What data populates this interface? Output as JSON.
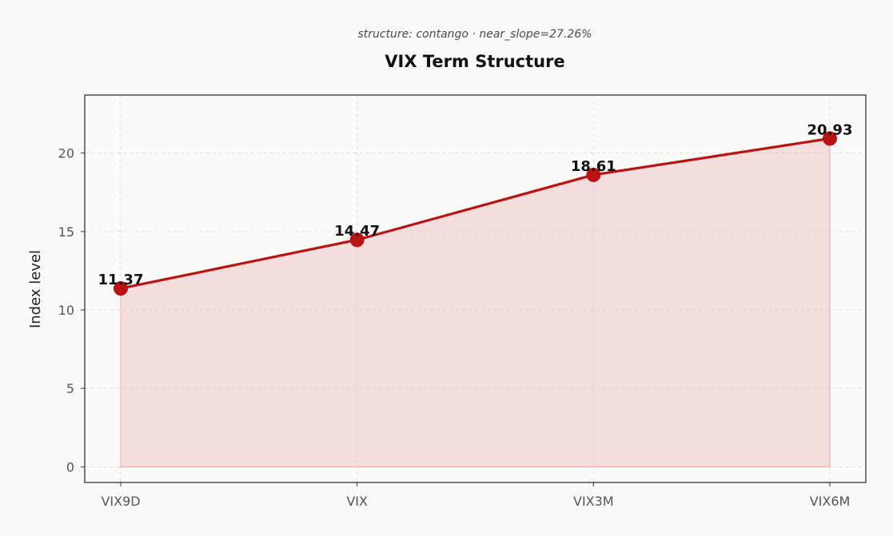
{
  "chart_data": {
    "type": "line",
    "title": "VIX Term Structure",
    "subtitle": "structure: contango · near_slope=27.26%",
    "xlabel": "",
    "ylabel": "Index level",
    "categories": [
      "VIX9D",
      "VIX",
      "VIX3M",
      "VIX6M"
    ],
    "values": [
      11.37,
      14.47,
      18.61,
      20.93
    ],
    "data_labels": [
      "11.37",
      "14.47",
      "18.61",
      "20.93"
    ],
    "ylim": [
      -1,
      23.7
    ],
    "yticks": [
      0,
      5,
      10,
      15,
      20
    ],
    "grid": true,
    "area_fill": true,
    "colors": {
      "line": "#b81414",
      "marker": "#b81414",
      "fill": "#e9b5b5",
      "background": "#f9f9f7",
      "plot_background": "#fafaf8"
    }
  }
}
